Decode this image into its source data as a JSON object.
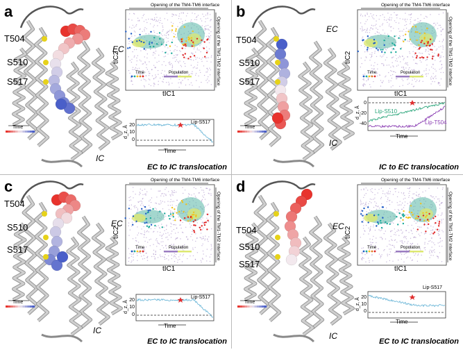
{
  "figure": {
    "panels": [
      {
        "letter": "a",
        "residues": [
          "T504",
          "S510",
          "S517"
        ],
        "ec_label": "EC",
        "ic_label": "IC",
        "time_legend": "Time",
        "axis_top": "Opening of the TM4-TM6 interface",
        "axis_right": "Opening of the TM1-TM2 interface",
        "tic_x": "tIC1",
        "tic_y": "tIC2",
        "legend_time": "Time",
        "legend_population": "Population",
        "trace_labels": [
          "Lip-S517"
        ],
        "trace_x": "Time",
        "trace_y": "d_z, Å",
        "trace_ticks": [
          "20",
          "10",
          "0"
        ],
        "caption": "EC to IC translocation"
      },
      {
        "letter": "b",
        "residues": [
          "T504",
          "S510",
          "S517"
        ],
        "ec_label": "EC",
        "ic_label": "IC",
        "time_legend": "Time",
        "axis_top": "Opening of the TM4-TM6 interface",
        "axis_right": "Opening of the TM1-TM2 interface",
        "tic_x": "tIC1",
        "tic_y": "tIC2",
        "legend_time": "Time",
        "legend_population": "Population",
        "trace_labels": [
          "Lip-S510",
          "Lip-T504"
        ],
        "trace_x": "Time",
        "trace_y": "d_z, Å",
        "trace_ticks": [
          "0",
          "-20",
          "-40"
        ],
        "caption": "IC to EC translocation"
      },
      {
        "letter": "c",
        "residues": [
          "T504",
          "S510",
          "S517"
        ],
        "ec_label": "EC",
        "ic_label": "IC",
        "time_legend": "Time",
        "axis_top": "Opening of the TM4-TM6 interface",
        "axis_right": "Opening of the TM1-TM2 interface",
        "tic_x": "tIC1",
        "tic_y": "tIC2",
        "legend_time": "Time",
        "legend_population": "Population",
        "trace_labels": [
          "Lip-S517"
        ],
        "trace_x": "Time",
        "trace_y": "d_z, Å",
        "trace_ticks": [
          "20",
          "10",
          "0"
        ],
        "caption": "EC to IC translocation"
      },
      {
        "letter": "d",
        "residues": [
          "T504",
          "S510",
          "S517"
        ],
        "ec_label": "EC",
        "ic_label": "IC",
        "time_legend": "Time",
        "axis_top": "Opening of the TM4-TM6 interface",
        "axis_right": "Opening of the TM1-TM2 interface",
        "tic_x": "tIC1",
        "tic_y": "tIC2",
        "legend_time": "Time",
        "legend_population": "Population",
        "trace_labels": [
          "Lip-S517"
        ],
        "trace_x": "Time",
        "trace_y": "d_z, Å",
        "trace_ticks": [
          "20",
          "10",
          "0"
        ],
        "caption": "EC to IC translocation"
      }
    ]
  },
  "colors": {
    "ribbon": "#cfcfcf",
    "ribbon_dark": "#8a8a8a",
    "sphere_red": "#e8332d",
    "sphere_blue": "#4a5fc9",
    "sphere_white": "#f3e9ee",
    "residue_yellow": "#e6d21a",
    "trace_blue": "#6fb8d8",
    "trace_green": "#2aa57a",
    "trace_purple": "#8b3fb3",
    "map_purple": "#9a7cc0",
    "map_teal": "#58b6a6",
    "map_yellow": "#dde870",
    "marker_red": "#e02424",
    "marker_star": "#e03030",
    "divider": "#b9b9b9"
  }
}
